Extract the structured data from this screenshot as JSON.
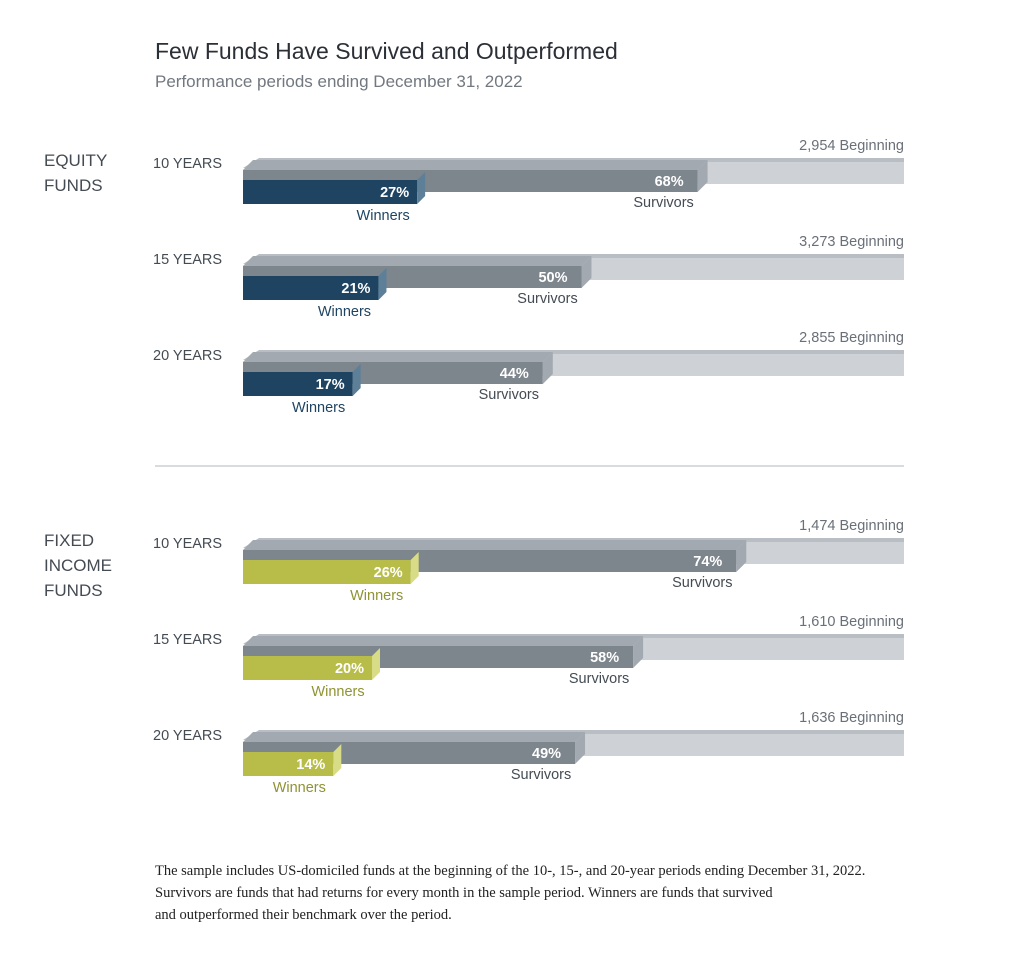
{
  "title": "Few Funds Have Survived and Outperformed",
  "subtitle": "Performance periods ending December 31, 2022",
  "colors": {
    "beginning": "#ced2d6",
    "beginning_top": "#b9bec4",
    "survivors": "#7d858d",
    "survivors_top": "#a3a9b0",
    "equity_winners": "#1e4462",
    "equity_winners_side": "#5d7f98",
    "fixed_winners": "#b8bd4a",
    "fixed_winners_side": "#d9dc86",
    "label_text": "#444b53",
    "equity_label": "#1e4462",
    "fixed_label": "#8f9333",
    "divider": "#d9dcdf"
  },
  "chart_data": [
    {
      "type": "bar",
      "group": "EQUITY FUNDS",
      "group_lines": [
        "EQUITY",
        "FUNDS"
      ],
      "rows": [
        {
          "period": "10 YEARS",
          "beginning": "2,954 Beginning",
          "survivors": 68,
          "winners": 27
        },
        {
          "period": "15 YEARS",
          "beginning": "3,273 Beginning",
          "survivors": 50,
          "winners": 21
        },
        {
          "period": "20 YEARS",
          "beginning": "2,855 Beginning",
          "survivors": 44,
          "winners": 17
        }
      ]
    },
    {
      "type": "bar",
      "group": "FIXED INCOME FUNDS",
      "group_lines": [
        "FIXED",
        "INCOME",
        "FUNDS"
      ],
      "rows": [
        {
          "period": "10 YEARS",
          "beginning": "1,474 Beginning",
          "survivors": 74,
          "winners": 26
        },
        {
          "period": "15 YEARS",
          "beginning": "1,610 Beginning",
          "survivors": 58,
          "winners": 20
        },
        {
          "period": "20 YEARS",
          "beginning": "1,636 Beginning",
          "survivors": 49,
          "winners": 14
        }
      ]
    }
  ],
  "labels": {
    "survivors": "Survivors",
    "winners": "Winners",
    "percent_suffix": "%"
  },
  "footnote": [
    "The sample includes US-domiciled funds at the beginning of the 10-, 15-, and 20-year periods ending December 31, 2022.",
    "Survivors are funds that had returns for every month in the sample period. Winners are funds that survived",
    "and outperformed their benchmark over the period."
  ]
}
